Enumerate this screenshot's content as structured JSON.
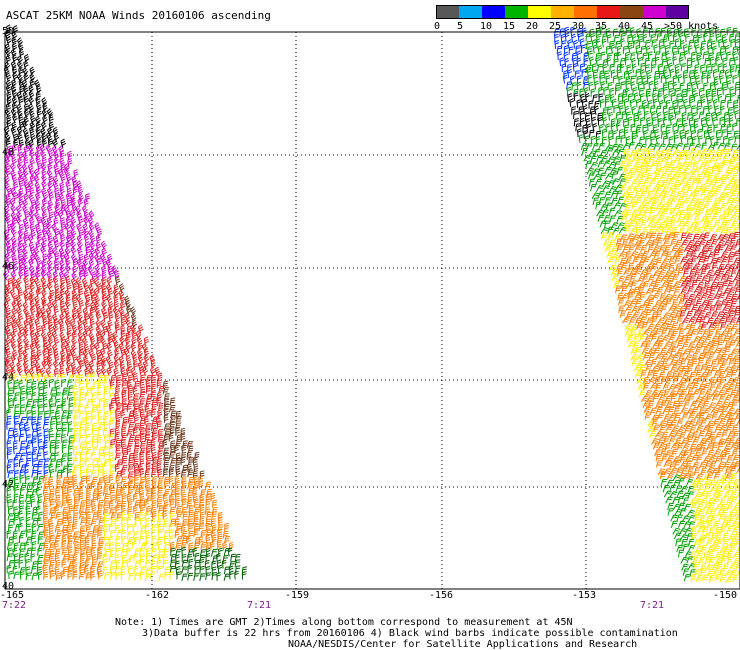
{
  "title": "ASCAT 25KM NOAA Winds 20160106 ascending",
  "colorbar": {
    "ticks": [
      "0",
      "5",
      "10",
      "15",
      "20",
      "25",
      "30",
      "35",
      "40",
      "45",
      ">50 knots"
    ],
    "colors": [
      "#585858",
      "#00a8f0",
      "#0000ff",
      "#00b400",
      "#ffff00",
      "#ffb000",
      "#ff7000",
      "#e81818",
      "#8b4513",
      "#d000d0",
      "#6000a0"
    ]
  },
  "latitude_labels": [
    "50",
    "48",
    "46",
    "44",
    "42",
    "40"
  ],
  "longitude_labels": [
    "-165",
    "-162",
    "-159",
    "-156",
    "-153",
    "-150"
  ],
  "time_labels": [
    "7:22",
    "7:21",
    "7:21"
  ],
  "notes": {
    "line1": "Note: 1) Times are GMT 2)Times along bottom correspond to measurement at 45N",
    "line2": "3)Data buffer is 22 hrs from 20160106 4) Black wind barbs indicate possible contamination",
    "line3": "NOAA/NESDIS/Center for Satellite Applications and Research"
  },
  "swath_colors": {
    "brown": "#6b3a1e",
    "black": "#000000",
    "magenta": "#cc00cc",
    "red": "#dd2020",
    "orange": "#ff8000",
    "yellow": "#ffee00",
    "green": "#00a000",
    "darkgreen": "#006000",
    "blue": "#0030ff"
  }
}
